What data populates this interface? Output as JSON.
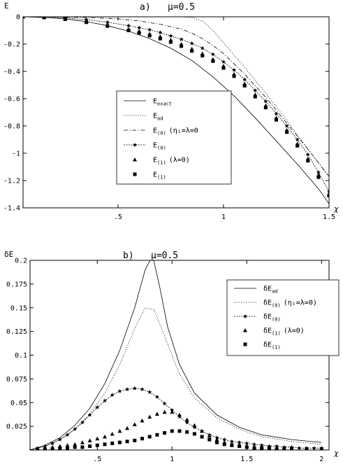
{
  "chart_data": [
    {
      "type": "line",
      "title": "a)",
      "mu_label": "μ=0.5",
      "ylabel": "E",
      "xlabel": "χ",
      "xlim": [
        0.05,
        1.5
      ],
      "ylim": [
        -1.4,
        0.0
      ],
      "xticks": [
        0.5,
        1.0,
        1.5
      ],
      "xtick_labels": [
        ".5",
        "1",
        "1.5"
      ],
      "yticks": [
        0,
        -0.2,
        -0.4,
        -0.6,
        -0.8,
        -1.0,
        -1.2,
        -1.4
      ],
      "ytick_labels": [
        "0",
        "-0.2",
        "-0.4",
        "-0.6",
        "-0.8",
        "-1",
        "-1.2",
        "-1.4"
      ],
      "legend_position": "center",
      "series": [
        {
          "label_main": "E",
          "label_sub": "exact",
          "label_tail": "",
          "style": "solid",
          "x": [
            0.05,
            0.15,
            0.25,
            0.35,
            0.45,
            0.55,
            0.65,
            0.75,
            0.85,
            0.95,
            1.05,
            1.15,
            1.25,
            1.35,
            1.45,
            1.5
          ],
          "y": [
            0.0,
            -0.005,
            -0.015,
            -0.035,
            -0.065,
            -0.105,
            -0.16,
            -0.23,
            -0.32,
            -0.44,
            -0.58,
            -0.74,
            -0.91,
            -1.08,
            -1.26,
            -1.37
          ]
        },
        {
          "label_main": "E",
          "label_sub": "ad",
          "label_tail": "",
          "style": "dotted",
          "x": [
            0.05,
            0.2,
            0.4,
            0.6,
            0.7,
            0.8,
            0.85,
            0.9,
            0.95,
            1.0,
            1.1,
            1.2,
            1.3,
            1.4,
            1.5
          ],
          "y": [
            0.0,
            0.0,
            0.0,
            0.0,
            0.0,
            0.0,
            -0.005,
            -0.03,
            -0.1,
            -0.19,
            -0.37,
            -0.56,
            -0.76,
            -0.97,
            -1.17
          ]
        },
        {
          "label_main": "E",
          "label_sub": "(0)",
          "label_tail": "(η₁=λ=0",
          "style": "dashdot",
          "x": [
            0.05,
            0.2,
            0.35,
            0.5,
            0.6,
            0.7,
            0.8,
            0.85,
            0.9,
            0.95,
            1.0,
            1.1,
            1.2,
            1.3,
            1.4,
            1.5
          ],
          "y": [
            0.0,
            0.0,
            -0.005,
            -0.015,
            -0.03,
            -0.055,
            -0.09,
            -0.12,
            -0.16,
            -0.21,
            -0.27,
            -0.42,
            -0.59,
            -0.78,
            -0.97,
            -1.17
          ]
        },
        {
          "label_main": "E",
          "label_sub": "(0)",
          "label_tail": "",
          "style": "star",
          "x": [
            0.05,
            0.15,
            0.25,
            0.35,
            0.45,
            0.55,
            0.6,
            0.65,
            0.7,
            0.75,
            0.8,
            0.85,
            0.9,
            0.95,
            1.0,
            1.05,
            1.1,
            1.15,
            1.2,
            1.25,
            1.3,
            1.35,
            1.4,
            1.45,
            1.5
          ],
          "y": [
            0.0,
            0.0,
            -0.008,
            -0.02,
            -0.04,
            -0.065,
            -0.08,
            -0.095,
            -0.115,
            -0.14,
            -0.165,
            -0.195,
            -0.23,
            -0.275,
            -0.33,
            -0.39,
            -0.46,
            -0.54,
            -0.62,
            -0.71,
            -0.8,
            -0.9,
            -1.01,
            -1.14,
            -1.28
          ]
        },
        {
          "label_main": "E",
          "label_sub": "(1)",
          "label_tail": "(λ=0)",
          "style": "triangle",
          "x": [
            0.05,
            0.15,
            0.25,
            0.35,
            0.45,
            0.55,
            0.6,
            0.65,
            0.7,
            0.75,
            0.8,
            0.85,
            0.9,
            0.95,
            1.0,
            1.05,
            1.1,
            1.15,
            1.2,
            1.25,
            1.3,
            1.35,
            1.4,
            1.45,
            1.5
          ],
          "y": [
            0.0,
            -0.005,
            -0.015,
            -0.035,
            -0.06,
            -0.09,
            -0.105,
            -0.125,
            -0.145,
            -0.17,
            -0.2,
            -0.235,
            -0.27,
            -0.31,
            -0.36,
            -0.42,
            -0.49,
            -0.57,
            -0.65,
            -0.74,
            -0.83,
            -0.93,
            -1.04,
            -1.16,
            -1.3
          ]
        },
        {
          "label_main": "E",
          "label_sub": "(1)",
          "label_tail": "",
          "style": "square",
          "x": [
            0.05,
            0.15,
            0.25,
            0.35,
            0.45,
            0.55,
            0.6,
            0.65,
            0.7,
            0.75,
            0.8,
            0.85,
            0.9,
            0.95,
            1.0,
            1.05,
            1.1,
            1.15,
            1.2,
            1.25,
            1.3,
            1.35,
            1.4,
            1.45,
            1.5
          ],
          "y": [
            0.0,
            -0.005,
            -0.018,
            -0.04,
            -0.068,
            -0.1,
            -0.118,
            -0.138,
            -0.16,
            -0.185,
            -0.215,
            -0.25,
            -0.285,
            -0.325,
            -0.375,
            -0.435,
            -0.505,
            -0.585,
            -0.665,
            -0.755,
            -0.845,
            -0.945,
            -1.055,
            -1.175,
            -1.31
          ]
        }
      ]
    },
    {
      "type": "line",
      "title": "b)",
      "mu_label": "μ=0.5",
      "ylabel": "δE",
      "xlabel": "χ",
      "xlim": [
        0.05,
        2.05
      ],
      "ylim": [
        0.0,
        0.2
      ],
      "xticks": [
        0.5,
        1.0,
        1.5,
        2.0
      ],
      "xtick_labels": [
        ".5",
        "1",
        "1.5",
        "2"
      ],
      "yticks": [
        0.025,
        0.05,
        0.075,
        0.1,
        0.125,
        0.15,
        0.175,
        0.2
      ],
      "ytick_labels": [
        "0.025",
        "0.05",
        "0.075",
        "0.1",
        "0.125",
        "0.15",
        "0.175",
        "0.2"
      ],
      "legend_position": "top-right",
      "series": [
        {
          "label_main": "δE",
          "label_sub": "ad",
          "label_tail": "",
          "style": "solid",
          "x": [
            0.05,
            0.15,
            0.25,
            0.35,
            0.45,
            0.55,
            0.65,
            0.75,
            0.82,
            0.87,
            0.92,
            0.97,
            1.05,
            1.15,
            1.3,
            1.45,
            1.6,
            1.8,
            2.0
          ],
          "y": [
            0.0,
            0.005,
            0.013,
            0.026,
            0.044,
            0.07,
            0.105,
            0.15,
            0.19,
            0.205,
            0.17,
            0.13,
            0.09,
            0.06,
            0.037,
            0.024,
            0.016,
            0.011,
            0.008
          ]
        },
        {
          "label_main": "δE",
          "label_sub": "(0)",
          "label_tail": "(η₁=λ=0)",
          "style": "dotted",
          "x": [
            0.05,
            0.15,
            0.25,
            0.35,
            0.45,
            0.55,
            0.65,
            0.75,
            0.82,
            0.88,
            0.95,
            1.05,
            1.15,
            1.3,
            1.45,
            1.6,
            1.8,
            2.0
          ],
          "y": [
            0.0,
            0.004,
            0.011,
            0.022,
            0.038,
            0.06,
            0.09,
            0.128,
            0.15,
            0.148,
            0.12,
            0.08,
            0.055,
            0.034,
            0.022,
            0.014,
            0.009,
            0.006
          ]
        },
        {
          "label_main": "δE",
          "label_sub": "(0)",
          "label_tail": "",
          "style": "star",
          "x": [
            0.05,
            0.1,
            0.15,
            0.2,
            0.25,
            0.3,
            0.35,
            0.4,
            0.45,
            0.5,
            0.55,
            0.6,
            0.65,
            0.7,
            0.75,
            0.8,
            0.85,
            0.9,
            0.95,
            1.0,
            1.05,
            1.1,
            1.15,
            1.2,
            1.25,
            1.3,
            1.35,
            1.4,
            1.45,
            1.5,
            1.55,
            1.6,
            1.65,
            1.7,
            1.75,
            1.8,
            1.85,
            1.9,
            1.95,
            2.0
          ],
          "y": [
            0.0,
            0.002,
            0.004,
            0.007,
            0.011,
            0.016,
            0.022,
            0.029,
            0.037,
            0.045,
            0.052,
            0.058,
            0.062,
            0.064,
            0.065,
            0.064,
            0.061,
            0.056,
            0.049,
            0.042,
            0.035,
            0.029,
            0.024,
            0.02,
            0.016,
            0.013,
            0.011,
            0.009,
            0.008,
            0.007,
            0.006,
            0.005,
            0.004,
            0.004,
            0.003,
            0.003,
            0.002,
            0.002,
            0.002,
            0.002
          ]
        },
        {
          "label_main": "δE",
          "label_sub": "(1)",
          "label_tail": "(λ=0)",
          "style": "triangle",
          "x": [
            0.1,
            0.15,
            0.2,
            0.25,
            0.3,
            0.35,
            0.4,
            0.45,
            0.5,
            0.55,
            0.6,
            0.65,
            0.7,
            0.75,
            0.8,
            0.85,
            0.9,
            0.95,
            1.0,
            1.05,
            1.1,
            1.15,
            1.2,
            1.25,
            1.3,
            1.35,
            1.4,
            1.45,
            1.5,
            1.55,
            1.6,
            1.65,
            1.7,
            1.75,
            1.8,
            1.9,
            2.0
          ],
          "y": [
            0.001,
            0.002,
            0.003,
            0.004,
            0.005,
            0.006,
            0.008,
            0.01,
            0.012,
            0.014,
            0.017,
            0.02,
            0.023,
            0.027,
            0.031,
            0.035,
            0.038,
            0.04,
            0.04,
            0.037,
            0.032,
            0.026,
            0.02,
            0.015,
            0.011,
            0.008,
            0.006,
            0.005,
            0.004,
            0.003,
            0.003,
            0.002,
            0.002,
            0.002,
            0.001,
            0.001,
            0.001
          ]
        },
        {
          "label_main": "δE",
          "label_sub": "(1)",
          "label_tail": "",
          "style": "square",
          "x": [
            0.1,
            0.15,
            0.2,
            0.25,
            0.3,
            0.35,
            0.4,
            0.45,
            0.5,
            0.55,
            0.6,
            0.65,
            0.7,
            0.75,
            0.8,
            0.85,
            0.9,
            0.95,
            1.0,
            1.05,
            1.1,
            1.15,
            1.2,
            1.25,
            1.3,
            1.35,
            1.4,
            1.45,
            1.5,
            1.55,
            1.6,
            1.65,
            1.7,
            1.75,
            1.8,
            1.9,
            2.0
          ],
          "y": [
            0.0,
            0.001,
            0.001,
            0.002,
            0.002,
            0.003,
            0.003,
            0.004,
            0.005,
            0.006,
            0.007,
            0.008,
            0.009,
            0.01,
            0.012,
            0.014,
            0.016,
            0.018,
            0.02,
            0.02,
            0.019,
            0.017,
            0.014,
            0.011,
            0.008,
            0.006,
            0.005,
            0.004,
            0.003,
            0.002,
            0.002,
            0.002,
            0.001,
            0.001,
            0.001,
            0.001,
            0.001
          ]
        }
      ]
    }
  ]
}
